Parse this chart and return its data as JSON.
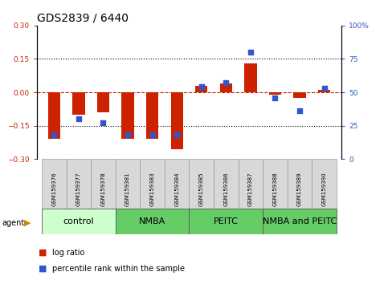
{
  "title": "GDS2839 / 6440",
  "samples": [
    "GSM159376",
    "GSM159377",
    "GSM159378",
    "GSM159381",
    "GSM159383",
    "GSM159384",
    "GSM159385",
    "GSM159386",
    "GSM159387",
    "GSM159388",
    "GSM159389",
    "GSM159390"
  ],
  "log_ratio": [
    -0.21,
    -0.1,
    -0.09,
    -0.21,
    -0.21,
    -0.255,
    0.03,
    0.04,
    0.13,
    -0.01,
    -0.025,
    0.01
  ],
  "percentile": [
    18,
    30,
    27,
    18,
    18,
    18,
    54,
    57,
    80,
    46,
    36,
    53
  ],
  "groups": [
    {
      "label": "control",
      "start": 0,
      "end": 3,
      "color": "#ccffcc"
    },
    {
      "label": "NMBA",
      "start": 3,
      "end": 6,
      "color": "#66cc66"
    },
    {
      "label": "PEITC",
      "start": 6,
      "end": 9,
      "color": "#66cc66"
    },
    {
      "label": "NMBA and PEITC",
      "start": 9,
      "end": 12,
      "color": "#66cc66"
    }
  ],
  "bar_color_red": "#cc2200",
  "bar_color_blue": "#3355cc",
  "ylim_left": [
    -0.3,
    0.3
  ],
  "ylim_right": [
    0,
    100
  ],
  "yticks_left": [
    -0.3,
    -0.15,
    0.0,
    0.15,
    0.3
  ],
  "yticks_right": [
    0,
    25,
    50,
    75,
    100
  ],
  "hlines_dotted": [
    0.15,
    -0.15
  ],
  "title_fontsize": 10,
  "tick_fontsize": 6.5,
  "sample_fontsize": 5,
  "group_label_fontsize": 8,
  "legend_fontsize": 7,
  "bar_width": 0.5
}
